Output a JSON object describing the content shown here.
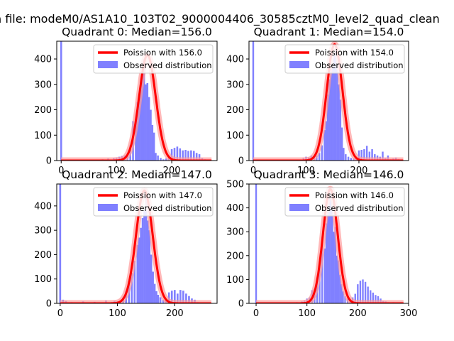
{
  "suptitle": "n file: modeM0/AS1A10_103T02_9000004406_30585cztM0_level2_quad_clean",
  "legend": {
    "observed": "Observed distribution",
    "poisson_prefix": "Poission with "
  },
  "colors": {
    "hist": "#8080ff",
    "curve": "#ff0000",
    "curve_halo": "#ff9a9a",
    "axis": "#000000"
  },
  "chart_data": [
    {
      "type": "bar",
      "title": "Quadrant 0: Median=156.0",
      "median": 156.0,
      "poisson_label": "156.0",
      "xlim": [
        -8,
        282
      ],
      "ylim": [
        0,
        470
      ],
      "xticks": [
        0,
        100,
        200
      ],
      "yticks": [
        0,
        100,
        200,
        300,
        400
      ],
      "x": [
        0,
        75,
        85,
        95,
        100,
        105,
        110,
        115,
        120,
        125,
        130,
        135,
        138,
        141,
        144,
        147,
        150,
        153,
        156,
        159,
        162,
        165,
        168,
        171,
        175,
        180,
        185,
        190,
        195,
        200,
        205,
        210,
        215,
        220,
        225,
        230,
        235,
        240,
        245,
        250,
        255,
        260
      ],
      "values": [
        470,
        5,
        8,
        10,
        12,
        15,
        18,
        20,
        28,
        60,
        155,
        160,
        230,
        255,
        290,
        350,
        400,
        300,
        305,
        250,
        200,
        140,
        110,
        30,
        20,
        10,
        5,
        8,
        20,
        45,
        50,
        55,
        48,
        40,
        42,
        38,
        40,
        38,
        30,
        25,
        10,
        5
      ]
    },
    {
      "type": "bar",
      "title": "Quadrant 1: Median=154.0",
      "median": 154.0,
      "poisson_label": "154.0",
      "xlim": [
        -8,
        294
      ],
      "ylim": [
        0,
        470
      ],
      "xticks": [
        0,
        100,
        200
      ],
      "yticks": [
        0,
        100,
        200,
        300,
        400
      ],
      "x": [
        0,
        95,
        100,
        105,
        110,
        115,
        120,
        125,
        130,
        135,
        138,
        141,
        144,
        147,
        150,
        153,
        156,
        159,
        162,
        165,
        168,
        171,
        175,
        180,
        185,
        190,
        195,
        200,
        205,
        210,
        215,
        220,
        225,
        230,
        235,
        240,
        245,
        250,
        255,
        260,
        265,
        270,
        275
      ],
      "values": [
        470,
        10,
        15,
        12,
        20,
        18,
        20,
        30,
        60,
        120,
        155,
        260,
        320,
        370,
        380,
        420,
        440,
        360,
        300,
        240,
        130,
        50,
        25,
        15,
        10,
        8,
        15,
        40,
        42,
        45,
        58,
        35,
        45,
        25,
        20,
        15,
        35,
        10,
        20,
        5,
        8,
        12,
        5
      ]
    },
    {
      "type": "bar",
      "title": "Quadrant 2: Median=147.0",
      "median": 147.0,
      "poisson_label": "147.0",
      "xlim": [
        -6,
        274
      ],
      "ylim": [
        0,
        490
      ],
      "xticks": [
        0,
        100,
        200
      ],
      "yticks": [
        0,
        100,
        200,
        300,
        400
      ],
      "x": [
        0,
        5,
        10,
        20,
        40,
        60,
        80,
        95,
        100,
        105,
        110,
        115,
        120,
        125,
        130,
        135,
        138,
        141,
        144,
        147,
        150,
        153,
        156,
        159,
        162,
        165,
        168,
        171,
        175,
        180,
        185,
        190,
        195,
        200,
        205,
        210,
        215,
        220,
        225,
        230,
        235,
        240
      ],
      "values": [
        490,
        15,
        10,
        5,
        8,
        6,
        12,
        10,
        8,
        5,
        25,
        50,
        90,
        125,
        175,
        240,
        270,
        310,
        350,
        380,
        445,
        340,
        300,
        200,
        130,
        80,
        50,
        35,
        25,
        15,
        20,
        45,
        52,
        55,
        40,
        55,
        52,
        40,
        30,
        20,
        15,
        5
      ]
    },
    {
      "type": "bar",
      "title": "Quadrant 3: Median=146.0",
      "median": 146.0,
      "poisson_label": "146.0",
      "xlim": [
        -14,
        300
      ],
      "ylim": [
        0,
        500
      ],
      "xticks": [
        0,
        100,
        200,
        300
      ],
      "yticks": [
        0,
        100,
        200,
        300,
        400,
        500
      ],
      "x": [
        0,
        80,
        90,
        95,
        100,
        105,
        110,
        115,
        120,
        125,
        130,
        135,
        138,
        141,
        144,
        147,
        150,
        153,
        156,
        159,
        162,
        165,
        168,
        171,
        175,
        180,
        185,
        190,
        195,
        200,
        205,
        210,
        215,
        220,
        225,
        230,
        235,
        240,
        245,
        250,
        255,
        260,
        270,
        285
      ],
      "values": [
        500,
        5,
        8,
        12,
        20,
        25,
        55,
        60,
        100,
        170,
        280,
        230,
        335,
        390,
        440,
        460,
        400,
        300,
        320,
        200,
        180,
        120,
        80,
        50,
        30,
        20,
        15,
        25,
        40,
        80,
        95,
        100,
        90,
        70,
        55,
        45,
        35,
        30,
        20,
        10,
        8,
        5,
        5,
        5
      ]
    }
  ]
}
